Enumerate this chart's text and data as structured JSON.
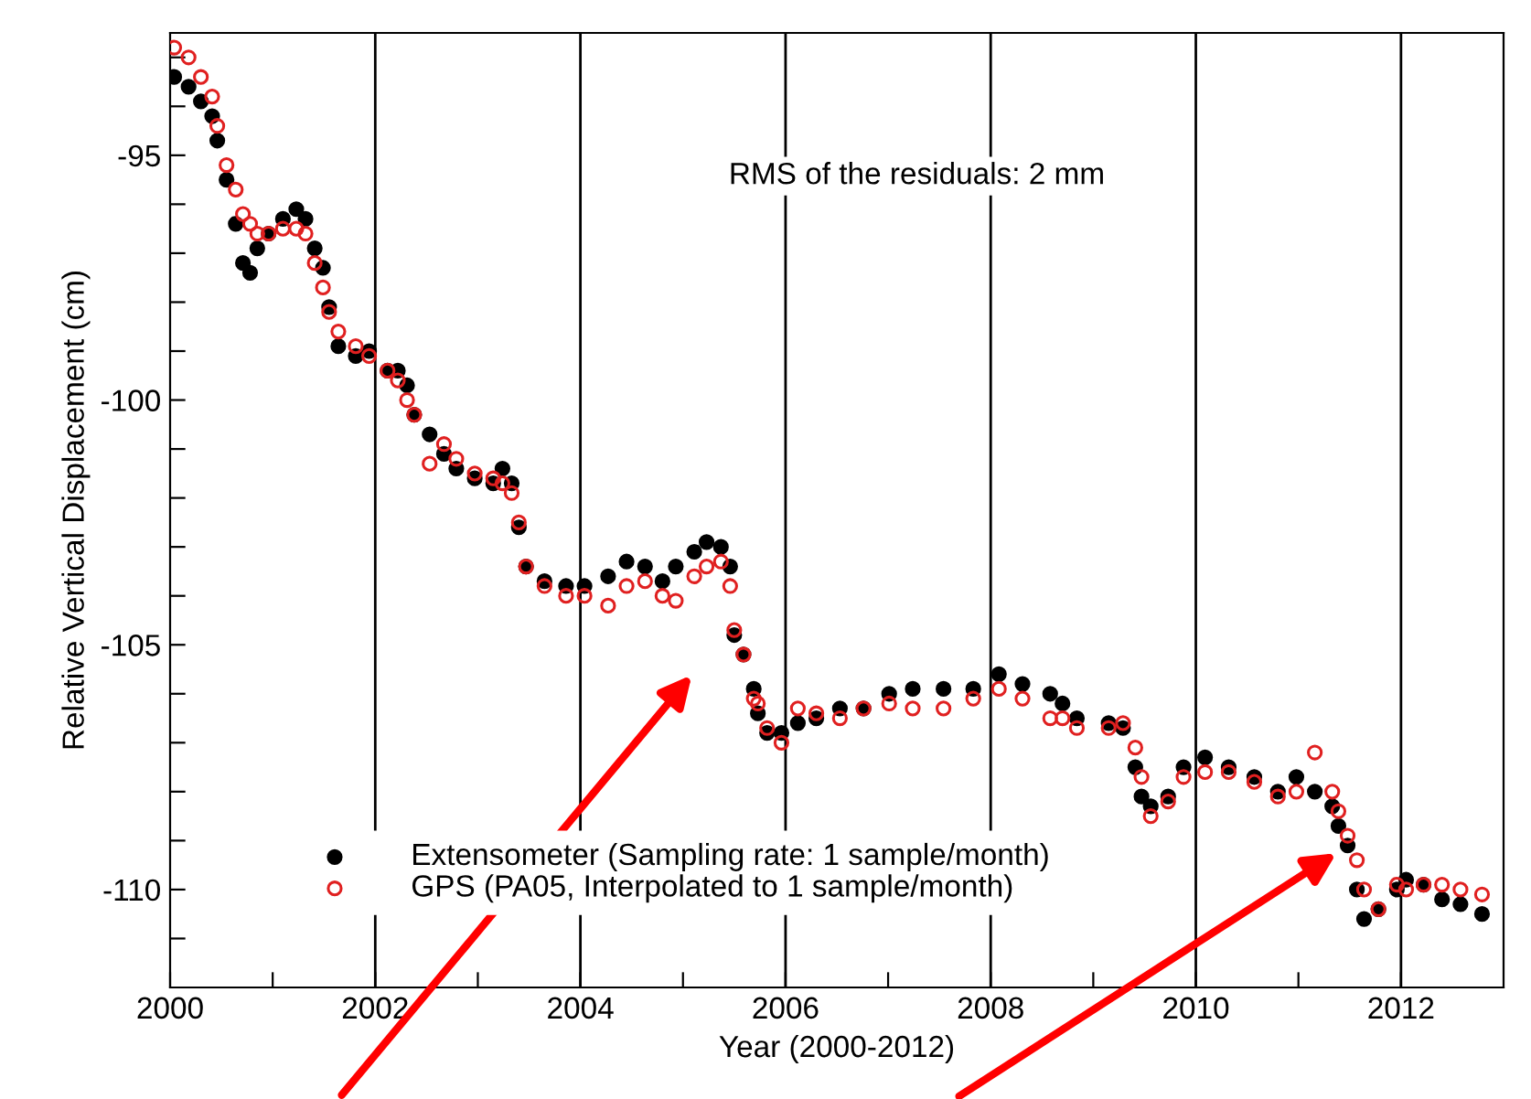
{
  "chart_data": {
    "type": "scatter",
    "xlabel": "Year (2000-2012)",
    "ylabel": "Relative Vertical Displacement (cm)",
    "annotations": [
      "RMS of the residuals: 2 mm"
    ],
    "x": [
      2000.04,
      2000.18,
      2000.3,
      2000.41,
      2000.46,
      2000.55,
      2000.64,
      2000.71,
      2000.78,
      2000.85,
      2000.96,
      2001.1,
      2001.23,
      2001.32,
      2001.41,
      2001.49,
      2001.55,
      2001.64,
      2001.81,
      2001.94,
      2002.12,
      2002.22,
      2002.31,
      2002.38,
      2002.53,
      2002.67,
      2002.79,
      2002.97,
      2003.15,
      2003.24,
      2003.33,
      2003.4,
      2003.47,
      2003.65,
      2003.86,
      2004.04,
      2004.27,
      2004.45,
      2004.63,
      2004.8,
      2004.93,
      2005.11,
      2005.23,
      2005.37,
      2005.46,
      2005.5,
      2005.59,
      2005.69,
      2005.73,
      2005.82,
      2005.96,
      2006.12,
      2006.3,
      2006.53,
      2006.76,
      2007.01,
      2007.24,
      2007.54,
      2007.83,
      2008.08,
      2008.31,
      2008.58,
      2008.7,
      2008.84,
      2009.15,
      2009.29,
      2009.41,
      2009.47,
      2009.56,
      2009.73,
      2009.88,
      2010.09,
      2010.32,
      2010.57,
      2010.8,
      2010.98,
      2011.16,
      2011.33,
      2011.39,
      2011.48,
      2011.57,
      2011.64,
      2011.78,
      2011.96,
      2012.05,
      2012.22,
      2012.4,
      2012.58,
      2012.79
    ],
    "series": [
      {
        "name": "Extensometer (Sampling rate: 1 sample/month)",
        "color": "#000000",
        "marker": "circle",
        "values": [
          -93.4,
          -93.6,
          -93.9,
          -94.2,
          -94.7,
          -95.5,
          -96.4,
          -97.2,
          -97.4,
          -96.9,
          -96.6,
          -96.3,
          -96.1,
          -96.3,
          -96.9,
          -97.3,
          -98.1,
          -98.9,
          -99.1,
          -99.0,
          -99.4,
          -99.4,
          -99.7,
          -100.3,
          -100.7,
          -101.1,
          -101.4,
          -101.6,
          -101.7,
          -101.4,
          -101.7,
          -102.6,
          -103.4,
          -103.7,
          -103.8,
          -103.8,
          -103.6,
          -103.3,
          -103.4,
          -103.7,
          -103.4,
          -103.1,
          -102.9,
          -103.0,
          -103.4,
          -104.8,
          -105.2,
          -105.9,
          -106.4,
          -106.8,
          -106.8,
          -106.6,
          -106.5,
          -106.3,
          -106.3,
          -106.0,
          -105.9,
          -105.9,
          -105.9,
          -105.6,
          -105.8,
          -106.0,
          -106.2,
          -106.5,
          -106.6,
          -106.7,
          -107.5,
          -108.1,
          -108.3,
          -108.1,
          -107.5,
          -107.3,
          -107.5,
          -107.7,
          -108.0,
          -107.7,
          -108.0,
          -108.3,
          -108.7,
          -109.1,
          -110.0,
          -110.6,
          -110.4,
          -110.0,
          -109.8,
          -109.9,
          -110.2,
          -110.3,
          -110.5
        ]
      },
      {
        "name": "GPS (PA05, Interpolated to 1 sample/month)",
        "color": "#e02020",
        "marker": "circle",
        "values": [
          -92.8,
          -93.0,
          -93.4,
          -93.8,
          -94.4,
          -95.2,
          -95.7,
          -96.2,
          -96.4,
          -96.6,
          -96.6,
          -96.5,
          -96.5,
          -96.6,
          -97.2,
          -97.7,
          -98.2,
          -98.6,
          -98.9,
          -99.1,
          -99.4,
          -99.6,
          -100.0,
          -100.3,
          -101.3,
          -100.9,
          -101.2,
          -101.5,
          -101.6,
          -101.7,
          -101.9,
          -102.5,
          -103.4,
          -103.8,
          -104.0,
          -104.0,
          -104.2,
          -103.8,
          -103.7,
          -104.0,
          -104.1,
          -103.6,
          -103.4,
          -103.3,
          -103.8,
          -104.7,
          -105.2,
          -106.1,
          -106.2,
          -106.7,
          -107.0,
          -106.3,
          -106.4,
          -106.5,
          -106.3,
          -106.2,
          -106.3,
          -106.3,
          -106.1,
          -105.9,
          -106.1,
          -106.5,
          -106.5,
          -106.7,
          -106.7,
          -106.6,
          -107.1,
          -107.7,
          -108.5,
          -108.2,
          -107.7,
          -107.6,
          -107.6,
          -107.8,
          -108.1,
          -108.0,
          -107.2,
          -108.0,
          -108.4,
          -108.9,
          -109.4,
          -110.0,
          -110.4,
          -109.9,
          -110.0,
          -109.9,
          -109.9,
          -110.0,
          -110.1
        ]
      }
    ],
    "xlim": [
      2000,
      2013
    ],
    "ylim": [
      -112,
      -92.5
    ],
    "xticks": [
      2000,
      {
        "value": 2001,
        "label": null
      },
      2002,
      {
        "value": 2003,
        "label": null
      },
      2004,
      {
        "value": 2005,
        "label": null
      },
      2006,
      {
        "value": 2007,
        "label": null
      },
      2008,
      {
        "value": 2009,
        "label": null
      },
      2010,
      {
        "value": 2011,
        "label": null
      },
      2012
    ],
    "yticks": [
      {
        "value": -93,
        "label": null
      },
      {
        "value": -94,
        "label": null
      },
      -95,
      {
        "value": -96,
        "label": null
      },
      {
        "value": -97,
        "label": null
      },
      {
        "value": -98,
        "label": null
      },
      {
        "value": -99,
        "label": null
      },
      -100,
      {
        "value": -101,
        "label": null
      },
      {
        "value": -102,
        "label": null
      },
      {
        "value": -103,
        "label": null
      },
      {
        "value": -104,
        "label": null
      },
      -105,
      {
        "value": -106,
        "label": null
      },
      {
        "value": -107,
        "label": null
      },
      {
        "value": -108,
        "label": null
      },
      {
        "value": -109,
        "label": null
      },
      -110,
      {
        "value": -111,
        "label": null
      }
    ],
    "grid": "x",
    "legend": "bottom left"
  }
}
